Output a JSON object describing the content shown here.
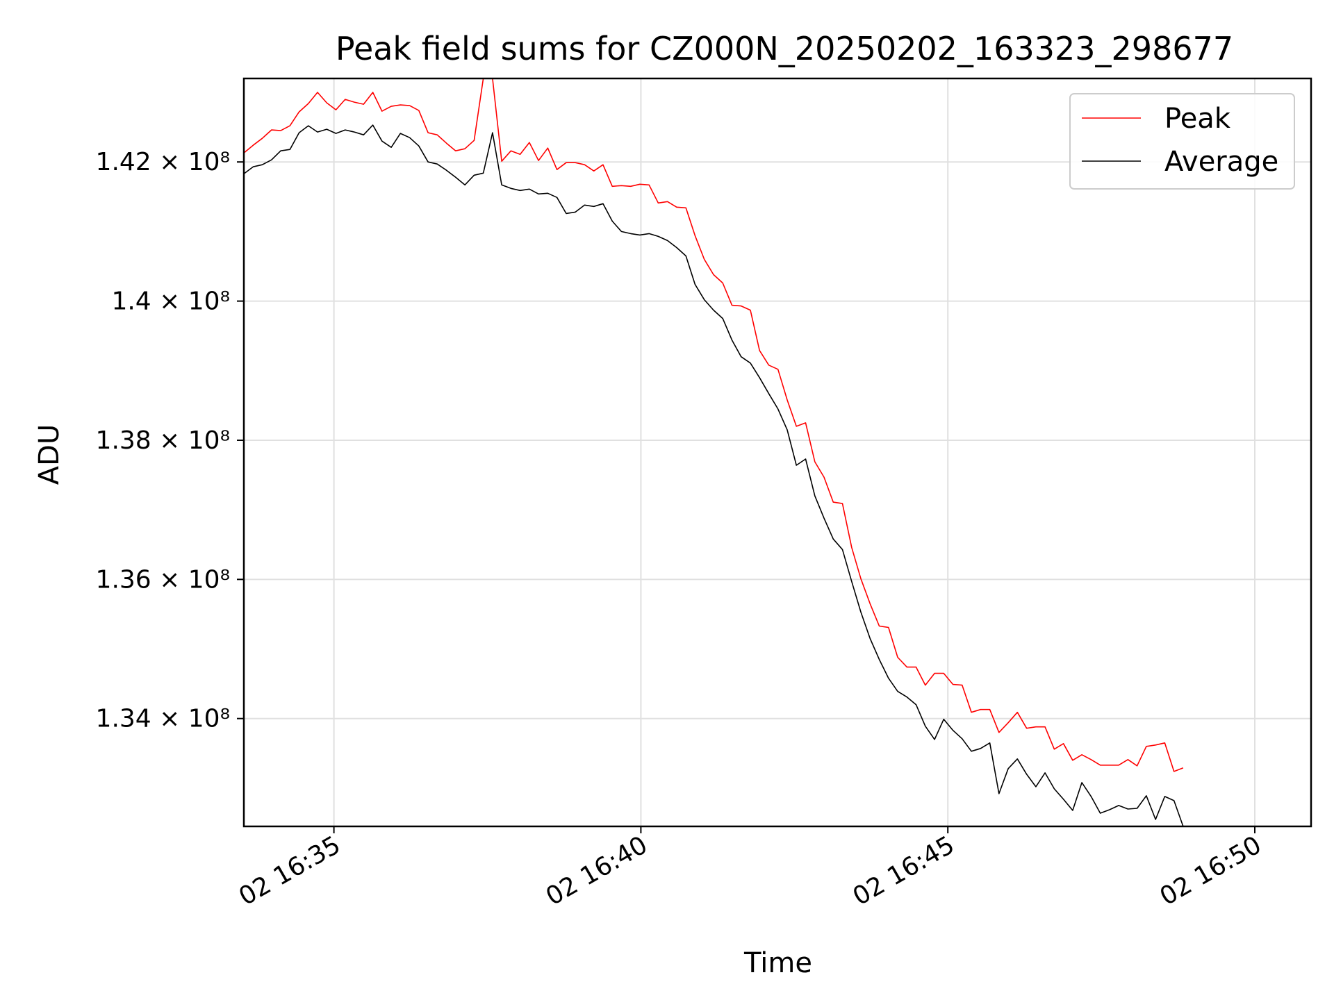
{
  "chart_data": {
    "type": "line",
    "title": "Peak field sums for CZ000N_20250202_163323_298677",
    "xlabel": "Time",
    "ylabel": "ADU",
    "x_range": [
      "16:33:32",
      "16:50:55"
    ],
    "ylim": [
      132450000,
      143200000
    ],
    "y_ticks": [
      {
        "value": 134000000,
        "label": "1.34 × 10⁸"
      },
      {
        "value": 136000000,
        "label": "1.36 × 10⁸"
      },
      {
        "value": 138000000,
        "label": "1.38 × 10⁸"
      },
      {
        "value": 140000000,
        "label": "1.4 × 10⁸"
      },
      {
        "value": 142000000,
        "label": "1.42 × 10⁸"
      }
    ],
    "x_ticks": [
      {
        "value": "16:35:00",
        "label": "02 16:35"
      },
      {
        "value": "16:40:00",
        "label": "02 16:40"
      },
      {
        "value": "16:45:00",
        "label": "02 16:45"
      },
      {
        "value": "16:50:00",
        "label": "02 16:50"
      }
    ],
    "grid": true,
    "legend_position": "top-right",
    "series": [
      {
        "name": "Peak",
        "color": "#ff0000",
        "points": [
          [
            "16:33:32",
            142130000
          ],
          [
            "16:33:41",
            142240000
          ],
          [
            "16:33:50",
            142340000
          ],
          [
            "16:33:59",
            142460000
          ],
          [
            "16:34:08",
            142450000
          ],
          [
            "16:34:17",
            142520000
          ],
          [
            "16:34:26",
            142720000
          ],
          [
            "16:34:35",
            142840000
          ],
          [
            "16:34:44",
            143000000
          ],
          [
            "16:34:53",
            142850000
          ],
          [
            "16:35:02",
            142750000
          ],
          [
            "16:35:11",
            142900000
          ],
          [
            "16:35:20",
            142860000
          ],
          [
            "16:35:29",
            142830000
          ],
          [
            "16:35:38",
            143000000
          ],
          [
            "16:35:47",
            142730000
          ],
          [
            "16:35:56",
            142800000
          ],
          [
            "16:36:05",
            142820000
          ],
          [
            "16:36:14",
            142810000
          ],
          [
            "16:36:23",
            142740000
          ],
          [
            "16:36:32",
            142420000
          ],
          [
            "16:36:41",
            142390000
          ],
          [
            "16:36:50",
            142270000
          ],
          [
            "16:36:59",
            142160000
          ],
          [
            "16:37:08",
            142190000
          ],
          [
            "16:37:17",
            142310000
          ],
          [
            "16:37:26",
            143200000
          ],
          [
            "16:37:35",
            143200000
          ],
          [
            "16:37:44",
            142010000
          ],
          [
            "16:37:53",
            142160000
          ],
          [
            "16:38:02",
            142110000
          ],
          [
            "16:38:11",
            142280000
          ],
          [
            "16:38:20",
            142020000
          ],
          [
            "16:38:29",
            142200000
          ],
          [
            "16:38:38",
            141890000
          ],
          [
            "16:38:47",
            141990000
          ],
          [
            "16:38:56",
            141990000
          ],
          [
            "16:39:05",
            141960000
          ],
          [
            "16:39:14",
            141870000
          ],
          [
            "16:39:23",
            141960000
          ],
          [
            "16:39:32",
            141650000
          ],
          [
            "16:39:41",
            141660000
          ],
          [
            "16:39:50",
            141650000
          ],
          [
            "16:39:59",
            141680000
          ],
          [
            "16:40:08",
            141670000
          ],
          [
            "16:40:17",
            141410000
          ],
          [
            "16:40:26",
            141430000
          ],
          [
            "16:40:35",
            141350000
          ],
          [
            "16:40:44",
            141340000
          ],
          [
            "16:40:53",
            140940000
          ],
          [
            "16:41:02",
            140600000
          ],
          [
            "16:41:11",
            140380000
          ],
          [
            "16:41:20",
            140260000
          ],
          [
            "16:41:29",
            139940000
          ],
          [
            "16:41:38",
            139930000
          ],
          [
            "16:41:47",
            139870000
          ],
          [
            "16:41:56",
            139290000
          ],
          [
            "16:42:05",
            139080000
          ],
          [
            "16:42:14",
            139020000
          ],
          [
            "16:42:23",
            138580000
          ],
          [
            "16:42:32",
            138200000
          ],
          [
            "16:42:41",
            138250000
          ],
          [
            "16:42:50",
            137690000
          ],
          [
            "16:42:59",
            137470000
          ],
          [
            "16:43:08",
            137110000
          ],
          [
            "16:43:17",
            137090000
          ],
          [
            "16:43:26",
            136460000
          ],
          [
            "16:43:35",
            136010000
          ],
          [
            "16:43:44",
            135650000
          ],
          [
            "16:43:53",
            135330000
          ],
          [
            "16:44:02",
            135310000
          ],
          [
            "16:44:11",
            134880000
          ],
          [
            "16:44:20",
            134740000
          ],
          [
            "16:44:29",
            134740000
          ],
          [
            "16:44:38",
            134480000
          ],
          [
            "16:44:47",
            134650000
          ],
          [
            "16:44:56",
            134650000
          ],
          [
            "16:45:05",
            134490000
          ],
          [
            "16:45:14",
            134480000
          ],
          [
            "16:45:23",
            134090000
          ],
          [
            "16:45:32",
            134130000
          ],
          [
            "16:45:41",
            134130000
          ],
          [
            "16:45:50",
            133800000
          ],
          [
            "16:45:59",
            133940000
          ],
          [
            "16:46:08",
            134090000
          ],
          [
            "16:46:17",
            133860000
          ],
          [
            "16:46:26",
            133880000
          ],
          [
            "16:46:35",
            133880000
          ],
          [
            "16:46:44",
            133560000
          ],
          [
            "16:46:53",
            133640000
          ],
          [
            "16:47:02",
            133400000
          ],
          [
            "16:47:11",
            133480000
          ],
          [
            "16:47:20",
            133410000
          ],
          [
            "16:47:29",
            133330000
          ],
          [
            "16:47:38",
            133330000
          ],
          [
            "16:47:47",
            133330000
          ],
          [
            "16:47:56",
            133410000
          ],
          [
            "16:48:05",
            133320000
          ],
          [
            "16:48:14",
            133600000
          ],
          [
            "16:48:23",
            133620000
          ],
          [
            "16:48:32",
            133650000
          ],
          [
            "16:48:41",
            133240000
          ],
          [
            "16:48:50",
            133290000
          ]
        ]
      },
      {
        "name": "Average",
        "color": "#000000",
        "points": [
          [
            "16:33:32",
            141830000
          ],
          [
            "16:33:41",
            141930000
          ],
          [
            "16:33:50",
            141960000
          ],
          [
            "16:33:59",
            142030000
          ],
          [
            "16:34:08",
            142160000
          ],
          [
            "16:34:17",
            142180000
          ],
          [
            "16:34:26",
            142420000
          ],
          [
            "16:34:35",
            142520000
          ],
          [
            "16:34:44",
            142430000
          ],
          [
            "16:34:53",
            142470000
          ],
          [
            "16:35:02",
            142410000
          ],
          [
            "16:35:11",
            142460000
          ],
          [
            "16:35:20",
            142430000
          ],
          [
            "16:35:29",
            142390000
          ],
          [
            "16:35:38",
            142530000
          ],
          [
            "16:35:47",
            142300000
          ],
          [
            "16:35:56",
            142210000
          ],
          [
            "16:36:05",
            142410000
          ],
          [
            "16:36:14",
            142350000
          ],
          [
            "16:36:23",
            142230000
          ],
          [
            "16:36:32",
            142000000
          ],
          [
            "16:36:41",
            141970000
          ],
          [
            "16:36:50",
            141880000
          ],
          [
            "16:36:59",
            141780000
          ],
          [
            "16:37:08",
            141670000
          ],
          [
            "16:37:17",
            141810000
          ],
          [
            "16:37:26",
            141840000
          ],
          [
            "16:37:35",
            142420000
          ],
          [
            "16:37:44",
            141670000
          ],
          [
            "16:37:53",
            141620000
          ],
          [
            "16:38:02",
            141590000
          ],
          [
            "16:38:11",
            141610000
          ],
          [
            "16:38:20",
            141540000
          ],
          [
            "16:38:29",
            141550000
          ],
          [
            "16:38:38",
            141490000
          ],
          [
            "16:38:47",
            141260000
          ],
          [
            "16:38:56",
            141280000
          ],
          [
            "16:39:05",
            141380000
          ],
          [
            "16:39:14",
            141360000
          ],
          [
            "16:39:23",
            141400000
          ],
          [
            "16:39:32",
            141150000
          ],
          [
            "16:39:41",
            141000000
          ],
          [
            "16:39:50",
            140970000
          ],
          [
            "16:39:59",
            140950000
          ],
          [
            "16:40:08",
            140970000
          ],
          [
            "16:40:17",
            140930000
          ],
          [
            "16:40:26",
            140870000
          ],
          [
            "16:40:35",
            140770000
          ],
          [
            "16:40:44",
            140650000
          ],
          [
            "16:40:53",
            140240000
          ],
          [
            "16:41:02",
            140020000
          ],
          [
            "16:41:11",
            139870000
          ],
          [
            "16:41:20",
            139750000
          ],
          [
            "16:41:29",
            139440000
          ],
          [
            "16:41:38",
            139200000
          ],
          [
            "16:41:47",
            139110000
          ],
          [
            "16:41:56",
            138900000
          ],
          [
            "16:42:05",
            138670000
          ],
          [
            "16:42:14",
            138450000
          ],
          [
            "16:42:23",
            138150000
          ],
          [
            "16:42:32",
            137640000
          ],
          [
            "16:42:41",
            137730000
          ],
          [
            "16:42:50",
            137200000
          ],
          [
            "16:42:59",
            136880000
          ],
          [
            "16:43:08",
            136580000
          ],
          [
            "16:43:17",
            136430000
          ],
          [
            "16:43:26",
            135970000
          ],
          [
            "16:43:35",
            135530000
          ],
          [
            "16:43:44",
            135150000
          ],
          [
            "16:43:53",
            134850000
          ],
          [
            "16:44:02",
            134580000
          ],
          [
            "16:44:11",
            134390000
          ],
          [
            "16:44:20",
            134310000
          ],
          [
            "16:44:29",
            134200000
          ],
          [
            "16:44:38",
            133890000
          ],
          [
            "16:44:47",
            133700000
          ],
          [
            "16:44:56",
            133990000
          ],
          [
            "16:45:05",
            133830000
          ],
          [
            "16:45:14",
            133710000
          ],
          [
            "16:45:23",
            133530000
          ],
          [
            "16:45:32",
            133570000
          ],
          [
            "16:45:41",
            133650000
          ],
          [
            "16:45:50",
            132920000
          ],
          [
            "16:45:59",
            133280000
          ],
          [
            "16:46:08",
            133420000
          ],
          [
            "16:46:17",
            133200000
          ],
          [
            "16:46:26",
            133020000
          ],
          [
            "16:46:35",
            133220000
          ],
          [
            "16:46:44",
            132990000
          ],
          [
            "16:46:53",
            132840000
          ],
          [
            "16:47:02",
            132680000
          ],
          [
            "16:47:11",
            133080000
          ],
          [
            "16:47:20",
            132880000
          ],
          [
            "16:47:29",
            132640000
          ],
          [
            "16:47:38",
            132690000
          ],
          [
            "16:47:47",
            132750000
          ],
          [
            "16:47:56",
            132700000
          ],
          [
            "16:48:05",
            132710000
          ],
          [
            "16:48:14",
            132890000
          ],
          [
            "16:48:23",
            132550000
          ],
          [
            "16:48:32",
            132880000
          ],
          [
            "16:48:41",
            132820000
          ],
          [
            "16:48:50",
            132450000
          ]
        ]
      }
    ]
  }
}
